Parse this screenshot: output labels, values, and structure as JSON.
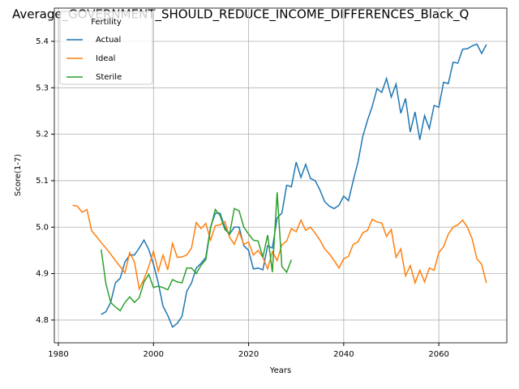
{
  "chart_data": {
    "type": "line",
    "title": "Average_GOVERNMENT_SHOULD_REDUCE_INCOME_DIFFERENCES_Black_Q",
    "x_label": "Years",
    "y_label": "Score(1-7)",
    "legend_title": "Fertility",
    "legend": "upper left",
    "grid": true,
    "xlim": [
      1979.15,
      2074.3
    ],
    "ylim": [
      4.751,
      5.4715
    ],
    "xticks": [
      1980,
      2000,
      2020,
      2040,
      2060
    ],
    "yticks": [
      4.8,
      4.9,
      {
        "value": 5,
        "label": "5.0"
      },
      5.1,
      5.2,
      5.3,
      5.4
    ],
    "series": [
      {
        "name": "Actual",
        "color": "#1f77b4",
        "x": [
          1989,
          1990,
          1991,
          1992,
          1993,
          1994,
          1995,
          1996,
          1997,
          1998,
          1999,
          2000,
          2001,
          2002,
          2003,
          2004,
          2005,
          2006,
          2007,
          2008,
          2009,
          2010,
          2011,
          2012,
          2013,
          2014,
          2015,
          2016,
          2017,
          2018,
          2019,
          2020,
          2021,
          2022,
          2023,
          2024,
          2025,
          2026,
          2027,
          2028,
          2029,
          2030,
          2031,
          2032,
          2033,
          2034,
          2035,
          2036,
          2037,
          2038,
          2039,
          2040,
          2041,
          2042,
          2043,
          2044,
          2045,
          2046,
          2047,
          2048,
          2049,
          2050,
          2051,
          2052,
          2053,
          2054,
          2055,
          2056,
          2057,
          2058,
          2059,
          2060,
          2061,
          2062,
          2063,
          2064,
          2065,
          2066,
          2067,
          2068,
          2069,
          2070
        ],
        "values": [
          4.812,
          4.818,
          4.838,
          4.88,
          4.89,
          4.925,
          4.94,
          4.94,
          4.955,
          4.972,
          4.952,
          4.92,
          4.88,
          4.83,
          4.81,
          4.785,
          4.793,
          4.808,
          4.862,
          4.88,
          4.912,
          4.922,
          4.935,
          5.0,
          5.03,
          5.03,
          5.0,
          4.985,
          5.0,
          5.0,
          4.96,
          4.95,
          4.91,
          4.912,
          4.908,
          4.96,
          4.955,
          5.02,
          5.03,
          5.09,
          5.087,
          5.14,
          5.107,
          5.135,
          5.105,
          5.1,
          5.08,
          5.055,
          5.045,
          5.04,
          5.047,
          5.067,
          5.057,
          5.1,
          5.14,
          5.195,
          5.23,
          5.26,
          5.298,
          5.29,
          5.32,
          5.28,
          5.308,
          5.245,
          5.277,
          5.205,
          5.248,
          5.188,
          5.24,
          5.212,
          5.262,
          5.258,
          5.312,
          5.309,
          5.355,
          5.353,
          5.383,
          5.384,
          5.39,
          5.394,
          5.374,
          5.393
        ]
      },
      {
        "name": "Ideal",
        "color": "#ff7f0e",
        "x": [
          1983,
          1984,
          1985,
          1986,
          1987,
          1988,
          1989,
          1990,
          1991,
          1992,
          1993,
          1994,
          1995,
          1996,
          1997,
          1998,
          1999,
          2000,
          2001,
          2002,
          2003,
          2004,
          2005,
          2006,
          2007,
          2008,
          2009,
          2010,
          2011,
          2012,
          2013,
          2014,
          2015,
          2016,
          2017,
          2018,
          2019,
          2020,
          2021,
          2022,
          2023,
          2024,
          2025,
          2026,
          2027,
          2028,
          2029,
          2030,
          2031,
          2032,
          2033,
          2034,
          2035,
          2036,
          2037,
          2038,
          2039,
          2040,
          2041,
          2042,
          2043,
          2044,
          2045,
          2046,
          2047,
          2048,
          2049,
          2050,
          2051,
          2052,
          2053,
          2054,
          2055,
          2056,
          2057,
          2058,
          2059,
          2060,
          2061,
          2062,
          2063,
          2064,
          2065,
          2066,
          2067,
          2068,
          2069,
          2070
        ],
        "values": [
          5.047,
          5.045,
          5.032,
          5.038,
          4.992,
          4.98,
          4.967,
          4.955,
          4.942,
          4.928,
          4.915,
          4.902,
          4.945,
          4.925,
          4.867,
          4.888,
          4.915,
          4.948,
          4.905,
          4.94,
          4.908,
          4.965,
          4.935,
          4.936,
          4.94,
          4.955,
          5.01,
          4.997,
          5.008,
          4.972,
          5.003,
          5.005,
          5.012,
          4.978,
          4.963,
          4.99,
          4.963,
          4.968,
          4.94,
          4.95,
          4.935,
          4.91,
          4.947,
          4.928,
          4.962,
          4.97,
          4.997,
          4.99,
          5.015,
          4.993,
          5.0,
          4.987,
          4.972,
          4.953,
          4.942,
          4.928,
          4.912,
          4.932,
          4.937,
          4.963,
          4.968,
          4.988,
          4.993,
          5.017,
          5.011,
          5.009,
          4.98,
          4.995,
          4.935,
          4.953,
          4.895,
          4.917,
          4.88,
          4.907,
          4.882,
          4.912,
          4.907,
          4.945,
          4.958,
          4.985,
          5.0,
          5.005,
          5.015,
          5.0,
          4.975,
          4.932,
          4.92,
          4.88
        ]
      },
      {
        "name": "Sterile",
        "color": "#2ca02c",
        "x": [
          1989,
          1990,
          1991,
          1992,
          1993,
          1994,
          1995,
          1996,
          1997,
          1998,
          1999,
          2000,
          2001,
          2002,
          2003,
          2004,
          2005,
          2006,
          2007,
          2008,
          2009,
          2010,
          2011,
          2012,
          2013,
          2014,
          2015,
          2016,
          2017,
          2018,
          2019,
          2020,
          2021,
          2022,
          2023,
          2024,
          2025,
          2026,
          2027,
          2028,
          2029
        ],
        "values": [
          4.952,
          4.878,
          4.838,
          4.828,
          4.82,
          4.838,
          4.85,
          4.838,
          4.848,
          4.882,
          4.898,
          4.87,
          4.873,
          4.87,
          4.865,
          4.887,
          4.882,
          4.88,
          4.912,
          4.912,
          4.9,
          4.918,
          4.93,
          4.998,
          5.038,
          5.025,
          4.995,
          4.985,
          5.04,
          5.035,
          5.0,
          4.985,
          4.972,
          4.97,
          4.935,
          4.983,
          4.903,
          5.075,
          4.915,
          4.903,
          4.93
        ]
      }
    ]
  }
}
